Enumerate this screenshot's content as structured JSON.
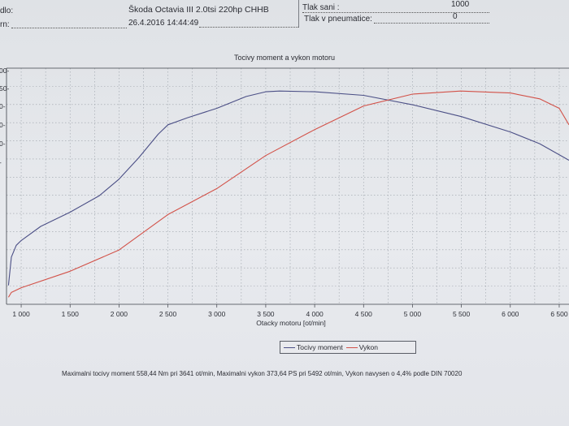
{
  "header": {
    "left_label_1": "dlo:",
    "left_label_2": "rn:",
    "vehicle": "Škoda Octavia III 2.0tsi 220hp CHHB",
    "datetime": "26.4.2016 14:44:49",
    "right_label_1": "Tlak sani :",
    "right_label_2": "Tlak v pneumatice:",
    "right_value_1": "1000",
    "right_value_2": "0"
  },
  "footnote": "Maximalni tocivy moment 558,44 Nm pri 3641 ot/min,  Maximalni vykon 373,64 PS pri 5492 ot/min,  Vykon navysen o 4,4% podle DIN 70020",
  "chart_data": {
    "type": "line",
    "title": "Tocivy moment a vykon motoru",
    "xlabel": "Otacky motoru [ot/min]",
    "xlim": [
      850,
      6600
    ],
    "ylim": [
      0,
      100
    ],
    "xticks": [
      1000,
      1500,
      2000,
      2500,
      3000,
      3500,
      4000,
      4500,
      5000,
      5500,
      6000,
      6500
    ],
    "xtick_labels": [
      "1 000",
      "1 500",
      "2 000",
      "2 500",
      "3 000",
      "3 500",
      "4 000",
      "4 500",
      "5 000",
      "5 500",
      "6 000",
      "6 500"
    ],
    "ytick_labels_partial": [
      "00-",
      "50-",
      "0-",
      "0-",
      "0-",
      "-"
    ],
    "grid": true,
    "legend_position": "bottom-center",
    "series": [
      {
        "name": "Tocivy moment",
        "color": "#4b4f86",
        "points": [
          [
            870,
            8
          ],
          [
            900,
            20
          ],
          [
            950,
            25
          ],
          [
            1000,
            27
          ],
          [
            1200,
            33
          ],
          [
            1500,
            39
          ],
          [
            1800,
            46
          ],
          [
            2000,
            53
          ],
          [
            2200,
            62
          ],
          [
            2400,
            72
          ],
          [
            2500,
            76
          ],
          [
            2700,
            79
          ],
          [
            3000,
            83
          ],
          [
            3300,
            88
          ],
          [
            3500,
            90
          ],
          [
            3641,
            90.3
          ],
          [
            4000,
            90
          ],
          [
            4500,
            88.5
          ],
          [
            5000,
            84.5
          ],
          [
            5500,
            79.5
          ],
          [
            6000,
            73
          ],
          [
            6300,
            68
          ],
          [
            6600,
            61
          ]
        ]
      },
      {
        "name": "Vykon",
        "color": "#d25148",
        "points": [
          [
            870,
            3
          ],
          [
            900,
            5
          ],
          [
            1000,
            7
          ],
          [
            1500,
            14
          ],
          [
            2000,
            23
          ],
          [
            2500,
            38
          ],
          [
            3000,
            49
          ],
          [
            3500,
            63
          ],
          [
            4000,
            74
          ],
          [
            4500,
            84
          ],
          [
            5000,
            89
          ],
          [
            5492,
            90.3
          ],
          [
            6000,
            89.5
          ],
          [
            6300,
            87
          ],
          [
            6500,
            83
          ],
          [
            6600,
            76
          ]
        ]
      }
    ]
  }
}
